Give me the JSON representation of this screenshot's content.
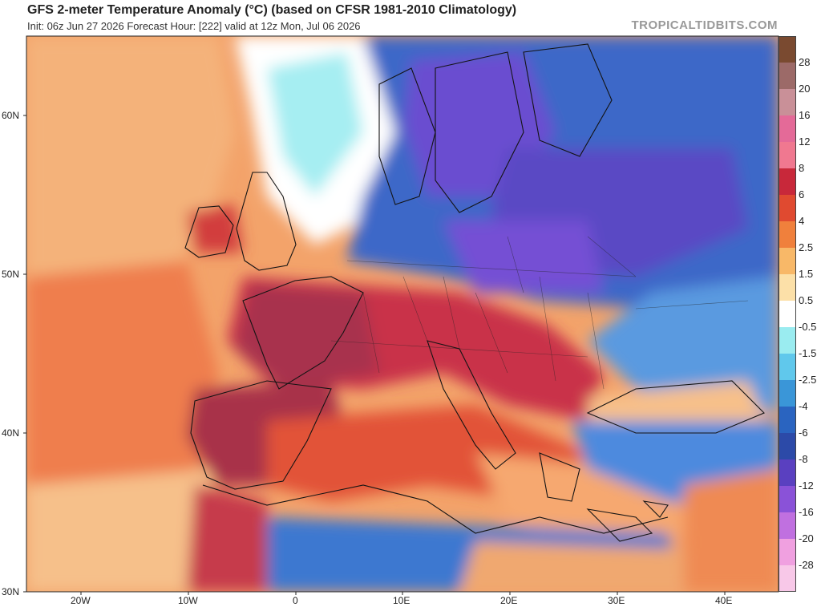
{
  "header": {
    "title": "GFS 2-meter Temperature Anomaly (°C) (based on CFSR 1981-2010 Climatology)",
    "subtitle": "Init: 06z Jun 27 2026   Forecast Hour: [222]   valid at 12z Mon, Jul 06 2026",
    "credit": "TROPICALTIDBITS.COM"
  },
  "axes": {
    "lat_labels": [
      "60N",
      "50N",
      "40N",
      "30N"
    ],
    "lon_labels": [
      "20W",
      "10W",
      "0",
      "10E",
      "20E",
      "30E",
      "40E"
    ]
  },
  "colorbar": {
    "ticks": [
      "28",
      "20",
      "16",
      "12",
      "8",
      "6",
      "4",
      "2.5",
      "1.5",
      "0.5",
      "-0.5",
      "-1.5",
      "-2.5",
      "-4",
      "-6",
      "-8",
      "-12",
      "-16",
      "-20",
      "-28"
    ],
    "colors": [
      "#7a4a30",
      "#9c6a68",
      "#c99098",
      "#e46a98",
      "#f07890",
      "#c8283a",
      "#e04a30",
      "#f0803c",
      "#f8b868",
      "#fce0a8",
      "#ffffff",
      "#9aecf0",
      "#60c8ec",
      "#3a96d8",
      "#2a64c0",
      "#2c4aa8",
      "#5a40c0",
      "#8a52d8",
      "#c070e0",
      "#f0a0e0",
      "#f8c8e8"
    ]
  },
  "legend_colors": {
    "warm_strong": "#a8324e",
    "warm": "#e0503a",
    "mild": "#f3a26a",
    "neutral": "#ffffff",
    "cool": "#4f8fe0",
    "cold": "#2a52b8",
    "very_cold": "#7048c8"
  }
}
